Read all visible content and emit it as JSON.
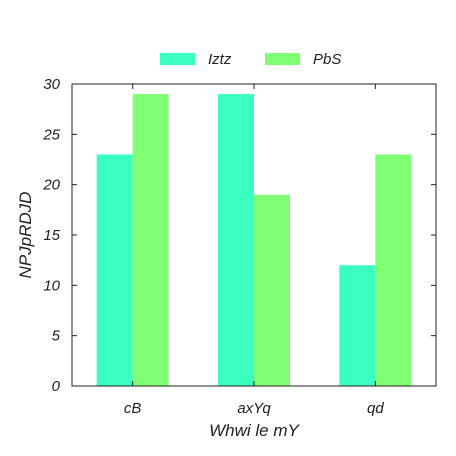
{
  "chart_data": {
    "type": "bar",
    "title": "",
    "xlabel": "Whwi le mY",
    "ylabel": "NPJpRDJD",
    "categories": [
      "cB",
      "axYq",
      "qd"
    ],
    "series": [
      {
        "name": "Iztz",
        "color": "#3bffc0",
        "values": [
          23,
          29,
          12
        ]
      },
      {
        "name": "PbS",
        "color": "#80ff74",
        "values": [
          29,
          19,
          23
        ]
      }
    ],
    "ylim": [
      0,
      30
    ],
    "yticks": [
      0,
      5,
      10,
      15,
      20,
      25,
      30
    ],
    "grid": false,
    "legend_position": "top-center"
  }
}
